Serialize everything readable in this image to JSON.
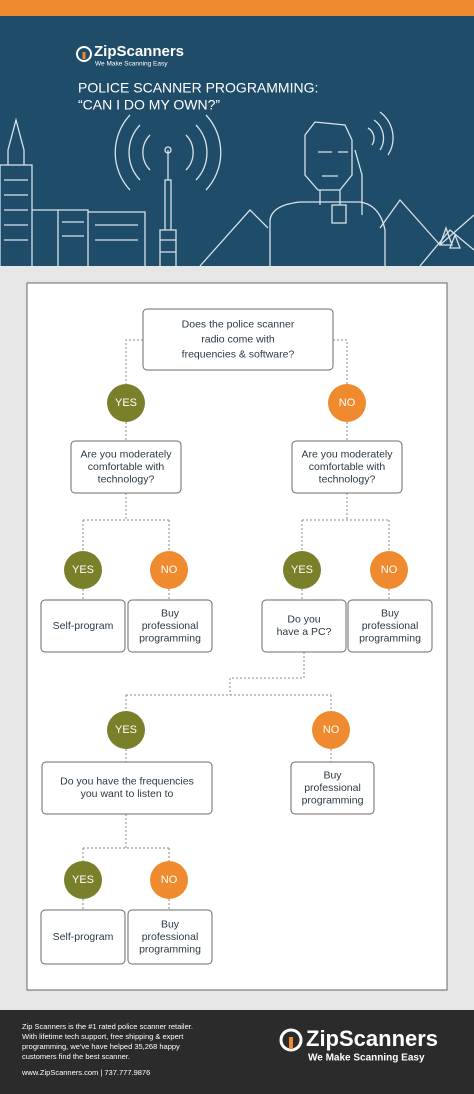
{
  "header": {
    "brand": "ZipScanners",
    "tagline": "We Make Scanning Easy",
    "title": [
      "POLICE SCANNER PROGRAMMING:",
      "“CAN I DO MY OWN?”"
    ]
  },
  "nodes": [
    {
      "lines": [
        "Does the police scanner",
        "radio come with",
        "frequencies & software?"
      ]
    },
    {
      "label": "YES"
    },
    {
      "label": "NO"
    },
    {
      "lines": [
        "Are you moderately",
        "comfortable with",
        "technology?"
      ]
    },
    {
      "lines": [
        "Are you moderately",
        "comfortable with",
        "technology?"
      ]
    },
    {
      "label": "YES"
    },
    {
      "label": "NO"
    },
    {
      "label": "YES"
    },
    {
      "label": "NO"
    },
    {
      "lines": [
        "Self-program"
      ]
    },
    {
      "lines": [
        "Buy",
        "professional",
        "programming"
      ]
    },
    {
      "lines": [
        "Do you",
        "have a PC?"
      ]
    },
    {
      "lines": [
        "Buy",
        "professional",
        "programming"
      ]
    },
    {
      "label": "YES"
    },
    {
      "label": "NO"
    },
    {
      "lines": [
        "Do you have the frequencies",
        "you want to listen to"
      ]
    },
    {
      "lines": [
        "Buy",
        "professional",
        "programming"
      ]
    },
    {
      "label": "YES"
    },
    {
      "label": "NO"
    },
    {
      "lines": [
        "Self-program"
      ]
    },
    {
      "lines": [
        "Buy",
        "professional",
        "programming"
      ]
    }
  ],
  "footer": {
    "about": [
      "Zip Scanners is the #1 rated police scanner retailer.",
      "With lifetime tech support, free shipping & expert",
      "programming, we've have helped 35,268 happy",
      "customers find the best scanner."
    ],
    "contact": "www.ZipScanners.com | 737.777.9876",
    "brand": "ZipScanners",
    "tagline": "We Make Scanning Easy"
  }
}
